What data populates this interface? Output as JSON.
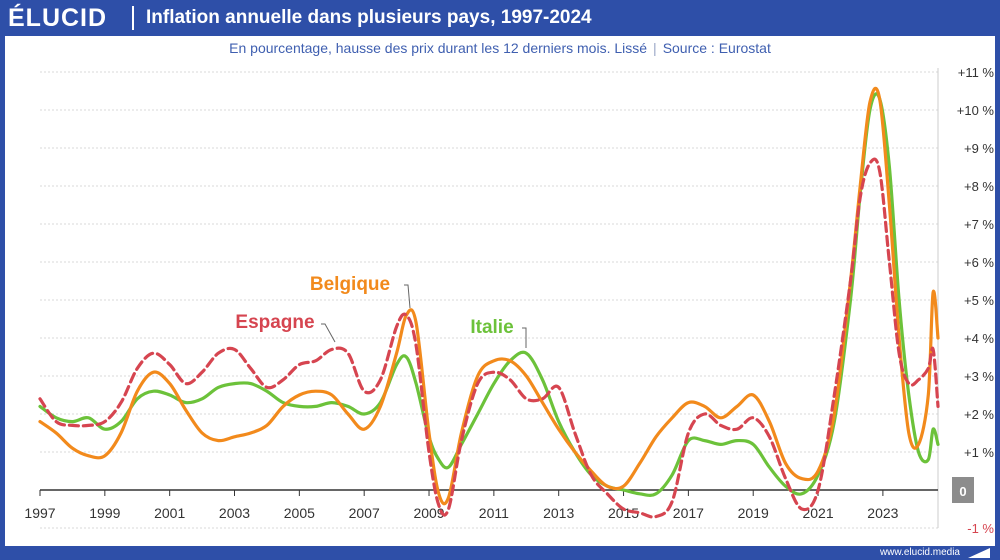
{
  "brand": {
    "logo": "ÉLUCID",
    "url": "www.elucid.media"
  },
  "header": {
    "title": "Inflation annuelle dans plusieurs pays, 1997-2024"
  },
  "subtitle": {
    "text": "En pourcentage, hausse des prix durant les 12 derniers mois. Lissé",
    "source": "Source : Eurostat"
  },
  "colors": {
    "brand": "#2e4fa8",
    "Belgique": "#f28a1c",
    "Espagne": "#d64550",
    "Italie": "#6cc23a"
  },
  "chart_data": {
    "type": "line",
    "title": "Inflation annuelle dans plusieurs pays, 1997-2024",
    "xlabel": "",
    "ylabel": "",
    "xlim": [
      1997,
      2024.7
    ],
    "ylim": [
      -1,
      11
    ],
    "y_ticks": [
      {
        "v": 11,
        "label": "+11 %"
      },
      {
        "v": 10,
        "label": "+10 %"
      },
      {
        "v": 9,
        "label": "+9 %"
      },
      {
        "v": 8,
        "label": "+8 %"
      },
      {
        "v": 7,
        "label": "+7 %"
      },
      {
        "v": 6,
        "label": "+6 %"
      },
      {
        "v": 5,
        "label": "+5 %"
      },
      {
        "v": 4,
        "label": "+4 %"
      },
      {
        "v": 3,
        "label": "+3 %"
      },
      {
        "v": 2,
        "label": "+2 %"
      },
      {
        "v": 1,
        "label": "+1 %"
      },
      {
        "v": 0,
        "label": "0"
      },
      {
        "v": -1,
        "label": "-1 %"
      }
    ],
    "x_ticks": [
      "1997",
      "1999",
      "2001",
      "2003",
      "2005",
      "2007",
      "2009",
      "2011",
      "2013",
      "2015",
      "2017",
      "2019",
      "2021",
      "2023"
    ],
    "grid": true,
    "y_axis_position": "right",
    "series": [
      {
        "name": "Belgique",
        "style": "solid",
        "x": [
          1997,
          1997.5,
          1998,
          1998.5,
          1999,
          1999.5,
          2000,
          2000.5,
          2001,
          2001.5,
          2002,
          2002.5,
          2003,
          2003.5,
          2004,
          2004.5,
          2005,
          2005.5,
          2006,
          2006.5,
          2007,
          2007.5,
          2008,
          2008.3,
          2008.6,
          2009,
          2009.3,
          2009.6,
          2010,
          2010.5,
          2011,
          2011.5,
          2012,
          2012.5,
          2013,
          2013.5,
          2014,
          2014.5,
          2015,
          2015.5,
          2016,
          2016.5,
          2017,
          2017.5,
          2018,
          2018.5,
          2019,
          2019.5,
          2020,
          2020.5,
          2021,
          2021.5,
          2022,
          2022.3,
          2022.6,
          2022.9,
          2023.2,
          2023.5,
          2023.8,
          2024.1,
          2024.4,
          2024.55,
          2024.7
        ],
        "y": [
          1.8,
          1.5,
          1.1,
          0.9,
          0.9,
          1.5,
          2.6,
          3.1,
          2.8,
          2.1,
          1.5,
          1.3,
          1.4,
          1.5,
          1.7,
          2.2,
          2.5,
          2.6,
          2.5,
          2.0,
          1.6,
          2.2,
          3.6,
          4.6,
          4.4,
          1.5,
          -0.1,
          -0.2,
          1.5,
          3.0,
          3.4,
          3.4,
          3.0,
          2.3,
          1.6,
          1.0,
          0.5,
          0.1,
          0.1,
          0.7,
          1.4,
          1.9,
          2.3,
          2.2,
          1.9,
          2.2,
          2.5,
          1.8,
          0.7,
          0.3,
          0.5,
          2.0,
          5.5,
          8.0,
          10.2,
          10.3,
          7.5,
          4.0,
          1.5,
          1.2,
          2.5,
          5.2,
          4.0
        ]
      },
      {
        "name": "Espagne",
        "style": "dashed",
        "x": [
          1997,
          1997.5,
          1998,
          1998.5,
          1999,
          1999.5,
          2000,
          2000.5,
          2001,
          2001.5,
          2002,
          2002.5,
          2003,
          2003.5,
          2004,
          2004.5,
          2005,
          2005.5,
          2006,
          2006.5,
          2007,
          2007.5,
          2008,
          2008.3,
          2008.6,
          2009,
          2009.3,
          2009.6,
          2010,
          2010.5,
          2011,
          2011.5,
          2012,
          2012.5,
          2013,
          2013.5,
          2014,
          2014.5,
          2015,
          2015.5,
          2016,
          2016.5,
          2017,
          2017.5,
          2018,
          2018.5,
          2019,
          2019.5,
          2020,
          2020.5,
          2021,
          2021.5,
          2022,
          2022.3,
          2022.6,
          2022.9,
          2023.2,
          2023.5,
          2023.8,
          2024.1,
          2024.4,
          2024.55,
          2024.7
        ],
        "y": [
          2.4,
          1.8,
          1.7,
          1.7,
          1.8,
          2.3,
          3.2,
          3.6,
          3.3,
          2.8,
          3.1,
          3.6,
          3.7,
          3.2,
          2.7,
          2.9,
          3.3,
          3.4,
          3.7,
          3.6,
          2.6,
          2.9,
          4.3,
          4.6,
          3.8,
          1.0,
          -0.4,
          -0.5,
          1.3,
          2.8,
          3.1,
          2.9,
          2.4,
          2.4,
          2.7,
          1.5,
          0.4,
          -0.1,
          -0.5,
          -0.6,
          -0.7,
          -0.3,
          1.5,
          2.0,
          1.7,
          1.6,
          1.9,
          1.4,
          0.3,
          -0.5,
          0.0,
          2.5,
          5.5,
          7.7,
          8.6,
          8.4,
          6.0,
          3.6,
          2.8,
          2.9,
          3.2,
          3.7,
          2.2
        ]
      },
      {
        "name": "Italie",
        "style": "solid",
        "x": [
          1997,
          1997.5,
          1998,
          1998.5,
          1999,
          1999.5,
          2000,
          2000.5,
          2001,
          2001.5,
          2002,
          2002.5,
          2003,
          2003.5,
          2004,
          2004.5,
          2005,
          2005.5,
          2006,
          2006.5,
          2007,
          2007.5,
          2008,
          2008.3,
          2008.6,
          2009,
          2009.3,
          2009.6,
          2010,
          2010.5,
          2011,
          2011.5,
          2012,
          2012.5,
          2013,
          2013.5,
          2014,
          2014.5,
          2015,
          2015.5,
          2016,
          2016.5,
          2017,
          2017.5,
          2018,
          2018.5,
          2019,
          2019.5,
          2020,
          2020.5,
          2021,
          2021.5,
          2022,
          2022.3,
          2022.6,
          2022.9,
          2023.2,
          2023.5,
          2023.8,
          2024.1,
          2024.4,
          2024.55,
          2024.7
        ],
        "y": [
          2.2,
          1.9,
          1.8,
          1.9,
          1.6,
          1.8,
          2.4,
          2.6,
          2.5,
          2.3,
          2.4,
          2.7,
          2.8,
          2.8,
          2.6,
          2.3,
          2.2,
          2.2,
          2.3,
          2.2,
          2.0,
          2.3,
          3.3,
          3.5,
          2.8,
          1.4,
          0.8,
          0.6,
          1.2,
          2.0,
          2.8,
          3.4,
          3.6,
          2.9,
          1.8,
          1.0,
          0.4,
          0.1,
          0.0,
          -0.1,
          -0.1,
          0.4,
          1.3,
          1.3,
          1.2,
          1.3,
          1.2,
          0.6,
          0.1,
          -0.1,
          0.4,
          1.8,
          5.0,
          7.8,
          10.0,
          10.3,
          8.5,
          5.0,
          2.5,
          1.0,
          0.8,
          1.6,
          1.2
        ]
      }
    ],
    "annotations": [
      {
        "text": "Belgique",
        "series": "Belgique"
      },
      {
        "text": "Espagne",
        "series": "Espagne"
      },
      {
        "text": "Italie",
        "series": "Italie"
      }
    ]
  }
}
